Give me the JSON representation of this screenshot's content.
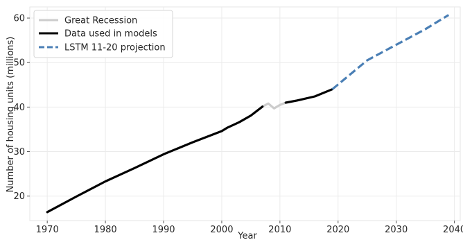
{
  "chart_data": {
    "type": "line",
    "title": "",
    "xlabel": "Year",
    "ylabel": "Number of housing units (millions)",
    "xlim": [
      1967,
      2041
    ],
    "ylim": [
      14.5,
      62.5
    ],
    "xticks": [
      1970,
      1980,
      1990,
      2000,
      2010,
      2020,
      2030,
      2040
    ],
    "yticks": [
      20,
      30,
      40,
      50,
      60
    ],
    "grid": true,
    "legend_position": "top-left",
    "series": [
      {
        "name": "Great Recession",
        "color": "#cccccc",
        "style": "solid",
        "points": [
          [
            2007,
            40.1
          ],
          [
            2008,
            40.8
          ],
          [
            2009,
            39.7
          ],
          [
            2010,
            40.5
          ],
          [
            2011,
            41.0
          ]
        ]
      },
      {
        "name": "Data used in models",
        "color": "#000000",
        "style": "solid",
        "segments": [
          [
            [
              1970,
              16.4
            ],
            [
              1975,
              19.9
            ],
            [
              1980,
              23.3
            ],
            [
              1985,
              26.3
            ],
            [
              1990,
              29.4
            ],
            [
              1995,
              32.1
            ],
            [
              2000,
              34.6
            ],
            [
              2001,
              35.4
            ],
            [
              2003,
              36.6
            ],
            [
              2005,
              38.1
            ],
            [
              2007,
              40.1
            ]
          ],
          [
            [
              2011,
              41.0
            ],
            [
              2013,
              41.5
            ],
            [
              2016,
              42.4
            ],
            [
              2019,
              44.0
            ]
          ]
        ]
      },
      {
        "name": "LSTM 11-20 projection",
        "color": "#4a7fb5",
        "style": "dashed",
        "points": [
          [
            2019,
            44.0
          ],
          [
            2025,
            50.5
          ],
          [
            2030,
            54.0
          ],
          [
            2035,
            57.5
          ],
          [
            2039,
            60.7
          ]
        ]
      }
    ]
  }
}
